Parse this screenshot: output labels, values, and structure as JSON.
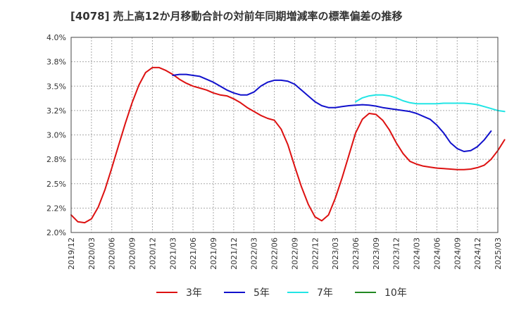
{
  "chart_data": {
    "type": "line",
    "title": "[4078]  売上高12か月移動合計の対前年同期増減率の標準偏差の推移",
    "xlabel": "",
    "ylabel": "",
    "ylim": [
      2.0,
      4.0
    ],
    "y_ticks": [
      "2.0%",
      "2.2%",
      "2.5%",
      "2.8%",
      "3.0%",
      "3.2%",
      "3.5%",
      "3.8%",
      "4.0%"
    ],
    "x_ticks": [
      "2019/12",
      "2020/03",
      "2020/06",
      "2020/09",
      "2020/12",
      "2021/03",
      "2021/06",
      "2021/09",
      "2021/12",
      "2022/03",
      "2022/06",
      "2022/09",
      "2022/12",
      "2023/03",
      "2023/06",
      "2023/09",
      "2023/12",
      "2024/03",
      "2024/06",
      "2024/09",
      "2024/12",
      "2025/03"
    ],
    "grid": true,
    "legend_position": "bottom",
    "series": [
      {
        "name": "3年",
        "color": "#dd1111",
        "start_index": 0,
        "values": [
          2.18,
          2.11,
          2.1,
          2.14,
          2.26,
          2.44,
          2.66,
          2.89,
          3.12,
          3.33,
          3.51,
          3.64,
          3.69,
          3.69,
          3.66,
          3.62,
          3.57,
          3.53,
          3.5,
          3.48,
          3.46,
          3.43,
          3.41,
          3.4,
          3.37,
          3.33,
          3.28,
          3.24,
          3.2,
          3.17,
          3.15,
          3.06,
          2.9,
          2.68,
          2.47,
          2.29,
          2.16,
          2.12,
          2.18,
          2.35,
          2.56,
          2.79,
          3.02,
          3.16,
          3.22,
          3.21,
          3.15,
          3.05,
          2.92,
          2.81,
          2.73,
          2.7,
          2.68,
          2.67,
          2.66,
          2.655,
          2.65,
          2.645,
          2.645,
          2.65,
          2.665,
          2.69,
          2.75,
          2.84,
          2.95
        ]
      },
      {
        "name": "5年",
        "color": "#1111cc",
        "start_index": 15,
        "values": [
          3.61,
          3.62,
          3.62,
          3.61,
          3.6,
          3.57,
          3.54,
          3.5,
          3.46,
          3.43,
          3.41,
          3.41,
          3.44,
          3.5,
          3.54,
          3.56,
          3.56,
          3.55,
          3.52,
          3.46,
          3.4,
          3.34,
          3.3,
          3.28,
          3.28,
          3.29,
          3.3,
          3.305,
          3.31,
          3.305,
          3.295,
          3.28,
          3.27,
          3.26,
          3.25,
          3.24,
          3.22,
          3.19,
          3.16,
          3.1,
          3.02,
          2.92,
          2.86,
          2.83,
          2.84,
          2.88,
          2.95,
          3.04
        ]
      },
      {
        "name": "7年",
        "color": "#22e5e5",
        "start_index": 42,
        "values": [
          3.34,
          3.38,
          3.4,
          3.41,
          3.41,
          3.4,
          3.38,
          3.35,
          3.33,
          3.32,
          3.32,
          3.32,
          3.32,
          3.325,
          3.325,
          3.325,
          3.325,
          3.32,
          3.31,
          3.29,
          3.27,
          3.25,
          3.24
        ]
      },
      {
        "name": "10年",
        "color": "#228822",
        "start_index": 0,
        "values": []
      }
    ]
  }
}
